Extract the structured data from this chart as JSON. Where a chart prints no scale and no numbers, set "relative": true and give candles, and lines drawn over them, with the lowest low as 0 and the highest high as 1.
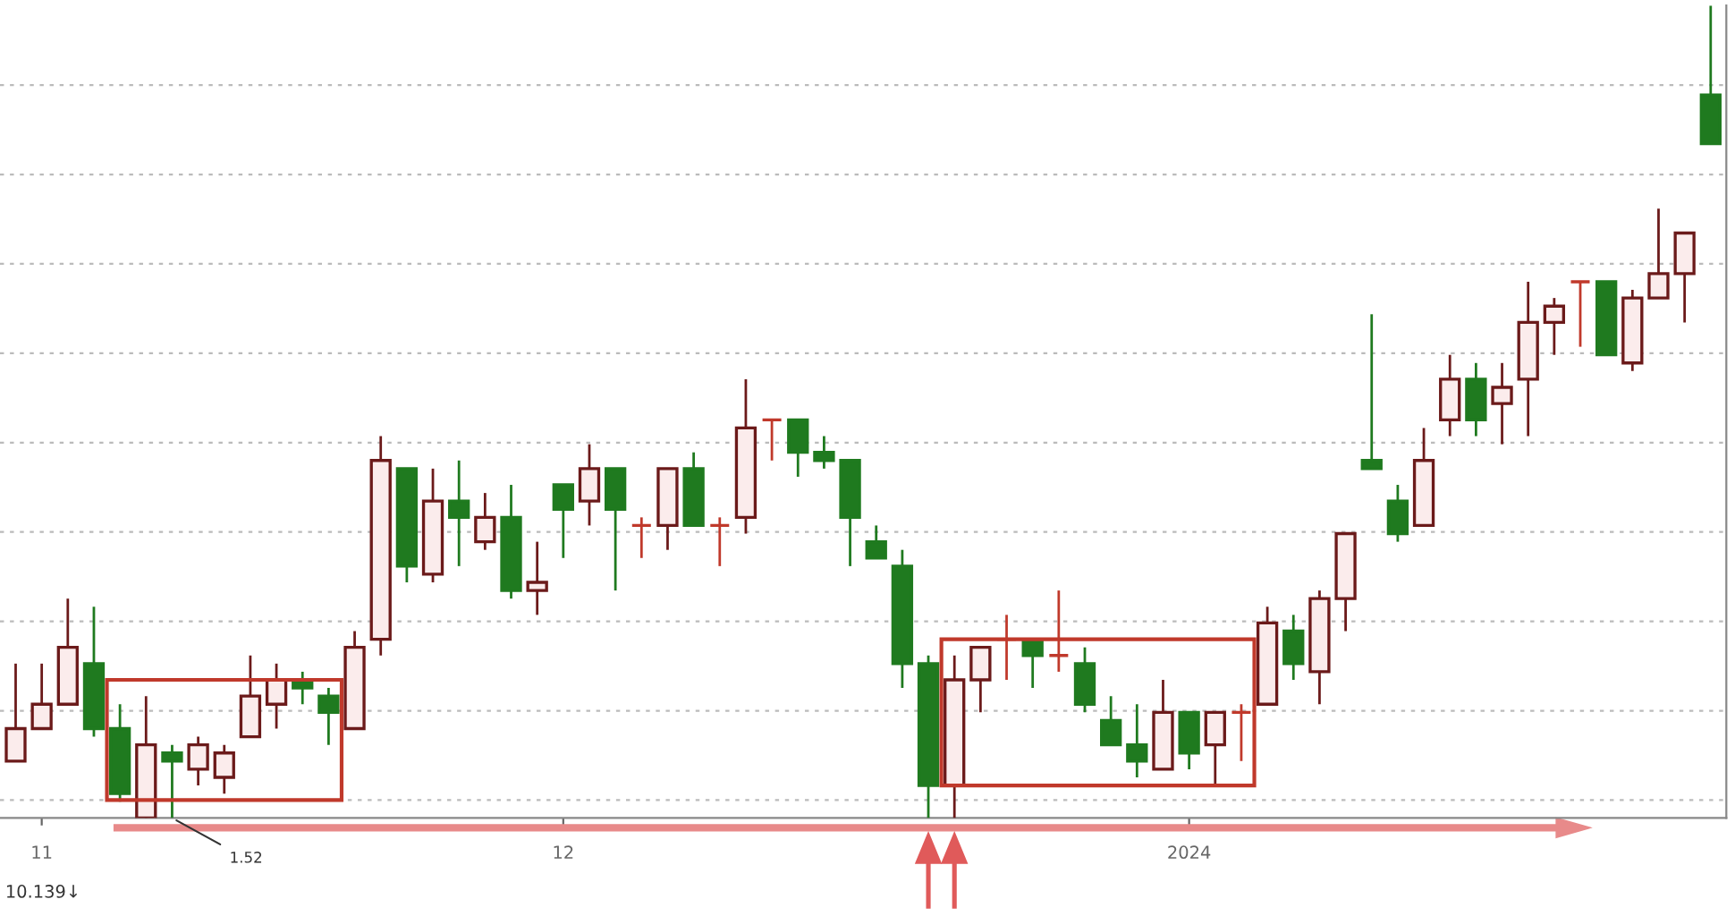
{
  "chart_data": {
    "type": "candlestick",
    "relative": true,
    "grid": "y",
    "legend": false,
    "tick_labels": "x",
    "categories": [
      null,
      "11",
      null,
      null,
      null,
      null,
      null,
      null,
      null,
      null,
      null,
      null,
      null,
      null,
      null,
      null,
      null,
      null,
      null,
      null,
      null,
      "12",
      null,
      null,
      null,
      null,
      null,
      null,
      null,
      null,
      null,
      null,
      null,
      null,
      null,
      null,
      null,
      null,
      null,
      null,
      null,
      null,
      null,
      null,
      null,
      "2024",
      null,
      null,
      null,
      null,
      null,
      null,
      null,
      null,
      null,
      null,
      null,
      null,
      null,
      null,
      null,
      null,
      null,
      null,
      null,
      null
    ],
    "ohlc": [
      [
        0.07,
        0.19,
        0.07,
        0.11
      ],
      [
        0.11,
        0.19,
        0.11,
        0.14
      ],
      [
        0.14,
        0.27,
        0.14,
        0.21
      ],
      [
        0.19,
        0.26,
        0.1,
        0.11
      ],
      [
        0.11,
        0.14,
        0.02,
        0.03
      ],
      [
        0,
        0.15,
        0,
        0.09
      ],
      [
        0.08,
        0.09,
        0,
        0.07
      ],
      [
        0.06,
        0.1,
        0.04,
        0.09
      ],
      [
        0.05,
        0.09,
        0.03,
        0.08
      ],
      [
        0.1,
        0.2,
        0.1,
        0.15
      ],
      [
        0.14,
        0.19,
        0.11,
        0.17
      ],
      [
        0.17,
        0.18,
        0.14,
        0.16
      ],
      [
        0.15,
        0.16,
        0.09,
        0.13
      ],
      [
        0.11,
        0.23,
        0.11,
        0.21
      ],
      [
        0.22,
        0.47,
        0.2,
        0.44
      ],
      [
        0.43,
        0.43,
        0.29,
        0.31
      ],
      [
        0.3,
        0.43,
        0.29,
        0.39
      ],
      [
        0.39,
        0.44,
        0.31,
        0.37
      ],
      [
        0.34,
        0.4,
        0.33,
        0.37
      ],
      [
        0.37,
        0.41,
        0.27,
        0.28
      ],
      [
        0.28,
        0.34,
        0.25,
        0.29
      ],
      [
        0.41,
        0.41,
        0.32,
        0.38
      ],
      [
        0.39,
        0.46,
        0.36,
        0.43
      ],
      [
        0.43,
        0.43,
        0.28,
        0.38
      ],
      [
        0.36,
        0.37,
        0.32,
        0.36
      ],
      [
        0.36,
        0.43,
        0.33,
        0.43
      ],
      [
        0.43,
        0.45,
        0.36,
        0.36
      ],
      [
        0.36,
        0.37,
        0.31,
        0.36
      ],
      [
        0.37,
        0.54,
        0.35,
        0.48
      ],
      [
        0.49,
        0.49,
        0.44,
        0.49
      ],
      [
        0.49,
        0.49,
        0.42,
        0.45
      ],
      [
        0.45,
        0.47,
        0.43,
        0.44
      ],
      [
        0.44,
        0.44,
        0.31,
        0.37
      ],
      [
        0.34,
        0.36,
        0.32,
        0.32
      ],
      [
        0.31,
        0.33,
        0.16,
        0.19
      ],
      [
        0.19,
        0.2,
        0,
        0.04
      ],
      [
        0.04,
        0.2,
        0,
        0.17
      ],
      [
        0.17,
        0.21,
        0.13,
        0.21
      ],
      [
        0.22,
        0.25,
        0.17,
        0.22
      ],
      [
        0.22,
        0.22,
        0.16,
        0.2
      ],
      [
        0.2,
        0.28,
        0.18,
        0.2
      ],
      [
        0.19,
        0.21,
        0.13,
        0.14
      ],
      [
        0.12,
        0.15,
        0.09,
        0.09
      ],
      [
        0.09,
        0.14,
        0.05,
        0.07
      ],
      [
        0.06,
        0.17,
        0.06,
        0.13
      ],
      [
        0.13,
        0.13,
        0.06,
        0.08
      ],
      [
        0.09,
        0.13,
        0.04,
        0.13
      ],
      [
        0.13,
        0.14,
        0.07,
        0.13
      ],
      [
        0.14,
        0.26,
        0.14,
        0.24
      ],
      [
        0.23,
        0.25,
        0.17,
        0.19
      ],
      [
        0.18,
        0.28,
        0.14,
        0.27
      ],
      [
        0.27,
        0.35,
        0.23,
        0.35
      ],
      [
        0.44,
        0.62,
        0.43,
        0.43
      ],
      [
        0.39,
        0.41,
        0.34,
        0.35
      ],
      [
        0.36,
        0.48,
        0.36,
        0.44
      ],
      [
        0.49,
        0.57,
        0.47,
        0.54
      ],
      [
        0.54,
        0.56,
        0.47,
        0.49
      ],
      [
        0.51,
        0.56,
        0.46,
        0.53
      ],
      [
        0.54,
        0.66,
        0.47,
        0.61
      ],
      [
        0.61,
        0.64,
        0.57,
        0.63
      ],
      [
        0.66,
        0.66,
        0.58,
        0.66
      ],
      [
        0.66,
        0.66,
        0.57,
        0.57
      ],
      [
        0.56,
        0.65,
        0.55,
        0.64
      ],
      [
        0.64,
        0.75,
        0.64,
        0.67
      ],
      [
        0.67,
        0.72,
        0.61,
        0.72
      ],
      [
        0.89,
        1,
        0.83,
        0.83
      ]
    ],
    "annotations": [
      "1.52",
      "10.139↓"
    ]
  }
}
